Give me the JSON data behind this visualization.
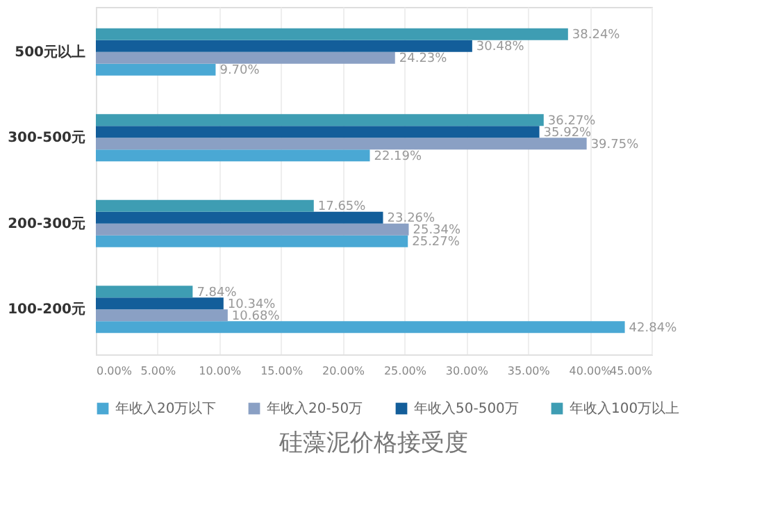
{
  "chart_data": {
    "type": "bar",
    "orientation": "horizontal",
    "title": "硅藻泥价格接受度",
    "categories": [
      "500元以上",
      "300-500元",
      "200-300元",
      "100-200元"
    ],
    "series": [
      {
        "name": "年收入20万以下",
        "color": "#4aa8d4",
        "values": [
          9.7,
          22.19,
          25.27,
          42.84
        ],
        "value_labels": [
          "9.70%",
          "22.19%",
          "25.27%",
          "42.84%"
        ]
      },
      {
        "name": "年收入20-50万",
        "color": "#8aa0c4",
        "values": [
          24.23,
          39.75,
          25.34,
          10.68
        ],
        "value_labels": [
          "24.23%",
          "39.75%",
          "25.34%",
          "10.68%"
        ]
      },
      {
        "name": "年收入50-500万",
        "color": "#135e9a",
        "values": [
          30.48,
          35.92,
          23.26,
          10.34
        ],
        "value_labels": [
          "30.48%",
          "35.92%",
          "23.26%",
          "10.34%"
        ]
      },
      {
        "name": "年收入100万以上",
        "color": "#3e9db3",
        "values": [
          38.24,
          36.27,
          17.65,
          7.84
        ],
        "value_labels": [
          "38.24%",
          "36.27%",
          "17.65%",
          "7.84%"
        ]
      }
    ],
    "xlim": [
      0,
      45
    ],
    "xticks": [
      {
        "value": 0,
        "label": "0.00%"
      },
      {
        "value": 5,
        "label": "5.00%"
      },
      {
        "value": 10,
        "label": "10.00%"
      },
      {
        "value": 15,
        "label": "15.00%"
      },
      {
        "value": 20,
        "label": "20.00%"
      },
      {
        "value": 25,
        "label": "25.00%"
      },
      {
        "value": 30,
        "label": "30.00%"
      },
      {
        "value": 35,
        "label": "35.00%"
      },
      {
        "value": 40,
        "label": "40.00%"
      },
      {
        "value": 45,
        "label": "45.00%"
      }
    ],
    "grid": "x",
    "legend": "bottom"
  }
}
